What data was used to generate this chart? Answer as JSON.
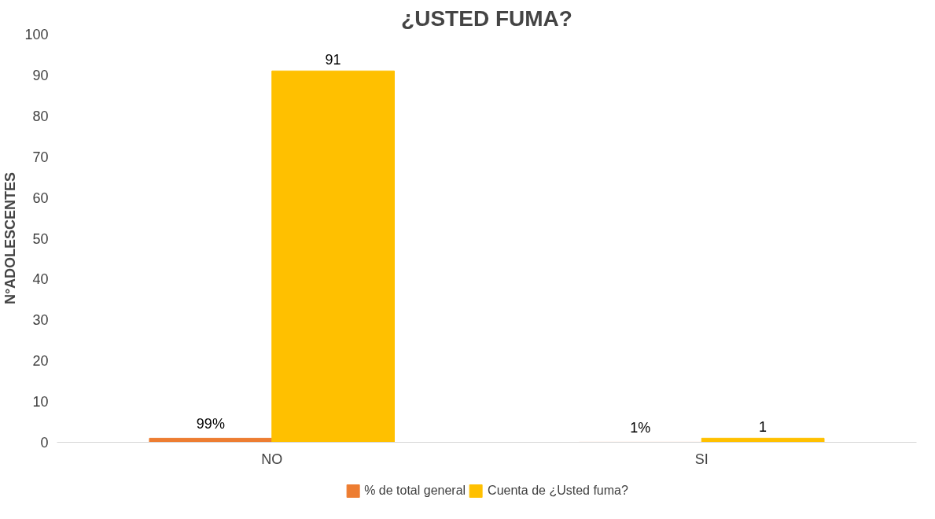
{
  "chart_data": {
    "type": "bar",
    "title": "¿USTED FUMA?",
    "ylabel": "N°ADOLESCENTES",
    "categories": [
      "NO",
      "SI"
    ],
    "series": [
      {
        "name": "% de total general",
        "color": "#ed7d31",
        "values": [
          0.99,
          0.01
        ],
        "value_labels": [
          "99%",
          "1%"
        ]
      },
      {
        "name": "Cuenta de ¿Usted fuma?",
        "color": "#ffc000",
        "values": [
          91,
          1
        ],
        "value_labels": [
          "91",
          "1"
        ]
      }
    ],
    "ylim": [
      0,
      100
    ],
    "yticks": [
      0,
      10,
      20,
      30,
      40,
      50,
      60,
      70,
      80,
      90,
      100
    ],
    "grid": false,
    "legend": "bottom"
  }
}
